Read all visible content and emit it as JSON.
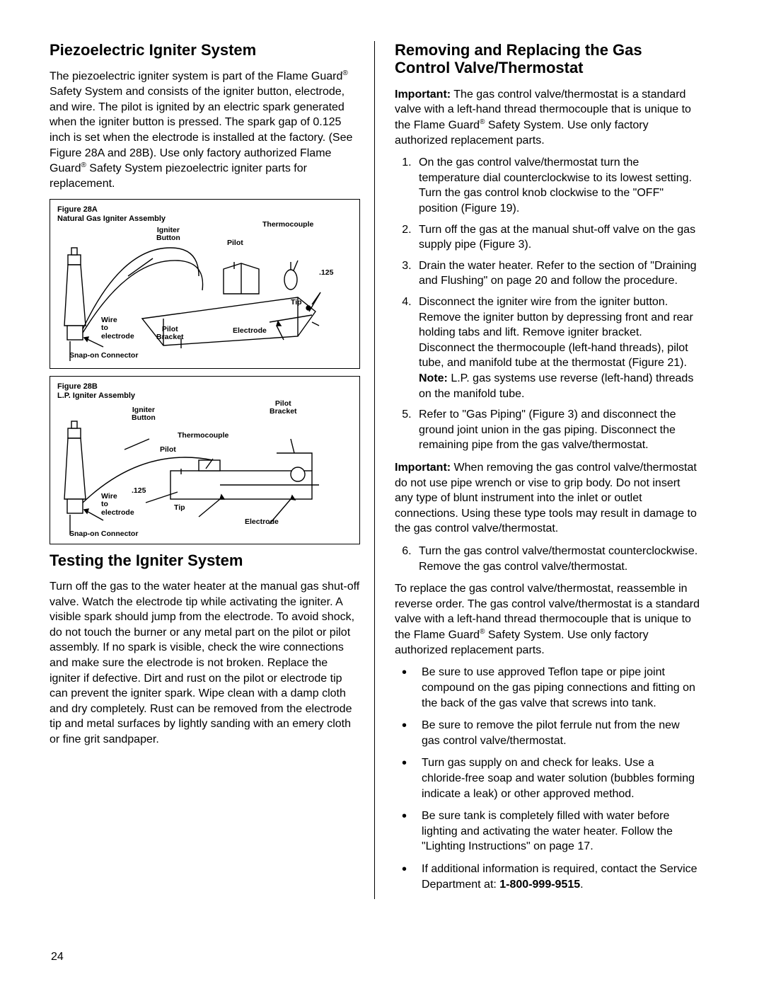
{
  "left": {
    "h1": "Piezoelectric Igniter System",
    "p1a": "The piezoelectric igniter system is part of the Flame Guard",
    "p1b": " Safety System and consists of the igniter button, electrode, and wire.  The pilot is ignited by an electric spark generated when the igniter button is pressed. The spark gap of 0.125 inch is set when the electrode is installed at the factory. (See Figure 28A and 28B). Use only factory authorized Flame Guard",
    "p1c": " Safety System piezoelectric igniter parts for replacement.",
    "figA": {
      "title1": "Figure 28A",
      "title2": "Natural Gas Igniter Assembly",
      "lbl_igniter": "Igniter\nButton",
      "lbl_thermo": "Thermocouple",
      "lbl_pilot": "Pilot",
      "lbl_125": ".125",
      "lbl_tip": "Tip",
      "lbl_wire": "Wire\nto\nelectrode",
      "lbl_pbracket": "Pilot\nBracket",
      "lbl_electrode": "Electrode",
      "lbl_snap": "Snap-on Connector"
    },
    "figB": {
      "title1": "Figure 28B",
      "title2": "L.P. Igniter Assembly",
      "lbl_igniter": "Igniter\nButton",
      "lbl_pbracket": "Pilot\nBracket",
      "lbl_thermo": "Thermocouple",
      "lbl_pilot": "Pilot",
      "lbl_125": ".125",
      "lbl_wire": "Wire\nto\nelectrode",
      "lbl_tip": "Tip",
      "lbl_electrode": "Electrode",
      "lbl_snap": "Snap-on Connector"
    },
    "h2": "Testing the Igniter System",
    "p2": "Turn off the gas to the water heater at the manual gas shut-off valve. Watch the electrode tip while activating the igniter. A visible spark should jump from the electrode. To avoid shock, do not touch the burner or any metal part on the pilot or pilot assembly. If no spark is visible, check the wire connections and make sure the electrode is not broken. Replace the igniter if defective. Dirt and rust on the pilot or electrode tip can prevent the igniter spark. Wipe clean with a damp cloth and dry completely. Rust can be removed from the electrode tip and metal surfaces by lightly sanding with an emery cloth or fine grit sandpaper."
  },
  "right": {
    "h1": "Removing and Replacing the Gas Control Valve/Thermostat",
    "p1a": "Important:",
    "p1b": " The gas control valve/thermostat is a standard valve with a left-hand thread thermocouple that is unique to the Flame Guard",
    "p1c": " Safety System. Use only factory authorized replacement parts.",
    "ol": [
      "On the gas control valve/thermostat turn the temperature dial counterclockwise to its lowest setting. Turn the gas control knob clockwise to the \"OFF\" position (Figure 19).",
      "Turn off the gas at the manual shut-off valve on the gas supply pipe (Figure 3).",
      "Drain the water heater. Refer to the section of \"Draining and Flushing\" on page 20 and follow the procedure."
    ],
    "ol4a": "Disconnect the igniter wire from the igniter button. Remove the igniter button by depressing front and rear holding tabs and lift. Remove igniter bracket. Disconnect the thermocouple (left-hand threads), pilot tube, and manifold tube at the thermostat (Figure 21). ",
    "ol4note": "Note:",
    "ol4b": " L.P. gas systems use reverse (left-hand) threads on the manifold tube.",
    "ol5": "Refer to \"Gas Piping\" (Figure 3) and disconnect the ground joint union in the gas piping. Disconnect the remaining pipe from the gas valve/thermostat.",
    "p2a": "Important:",
    "p2b": "  When removing the gas control valve/thermostat do not use pipe wrench or vise to grip body. Do not insert any type of blunt instrument into the inlet or outlet connections. Using these type tools may result in damage to the gas control valve/thermostat.",
    "ol6": "Turn the gas control valve/thermostat counterclockwise. Remove the gas control valve/thermostat.",
    "p3a": "To replace the gas control valve/thermostat, reassemble in reverse order. The gas control valve/thermostat is a standard valve with a left-hand thread thermocouple that is unique to the Flame Guard",
    "p3b": " Safety System. Use only factory authorized replacement parts.",
    "ul": [
      "Be sure to use approved Teflon tape or pipe joint compound on the gas piping connections and fitting on the back of the gas valve that screws into tank.",
      "Be sure to remove the pilot ferrule nut from the new gas control valve/thermostat.",
      "Turn gas supply on and check for leaks. Use a chloride-free soap and water solution (bubbles forming indicate a leak) or other approved method.",
      "Be sure tank is completely filled with water before lighting and activating the water heater. Follow the \"Lighting Instructions\" on page 17."
    ],
    "ul5a": "If additional information is required, contact the Service Department at: ",
    "ul5b": "1-800-999-9515",
    "ul5c": "."
  },
  "page": "24"
}
